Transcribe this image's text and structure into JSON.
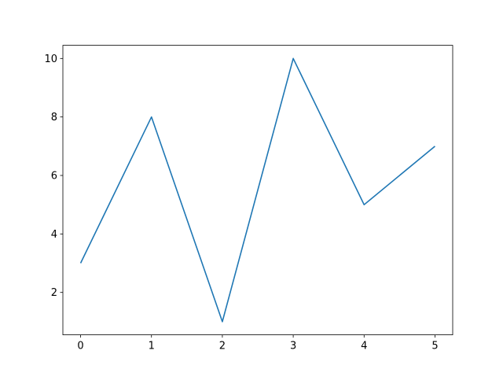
{
  "chart_data": {
    "type": "line",
    "title": "",
    "xlabel": "",
    "ylabel": "",
    "x": [
      0,
      1,
      2,
      3,
      4,
      5
    ],
    "series": [
      {
        "values": [
          3,
          8,
          1,
          10,
          5,
          7
        ],
        "color": "#1f77b4"
      }
    ],
    "xlim": [
      -0.25,
      5.25
    ],
    "ylim": [
      0.55,
      10.45
    ],
    "xticks": [
      "0",
      "1",
      "2",
      "3",
      "4",
      "5"
    ],
    "yticks": [
      "2",
      "4",
      "6",
      "8",
      "10"
    ],
    "grid": false,
    "legend": "none"
  }
}
